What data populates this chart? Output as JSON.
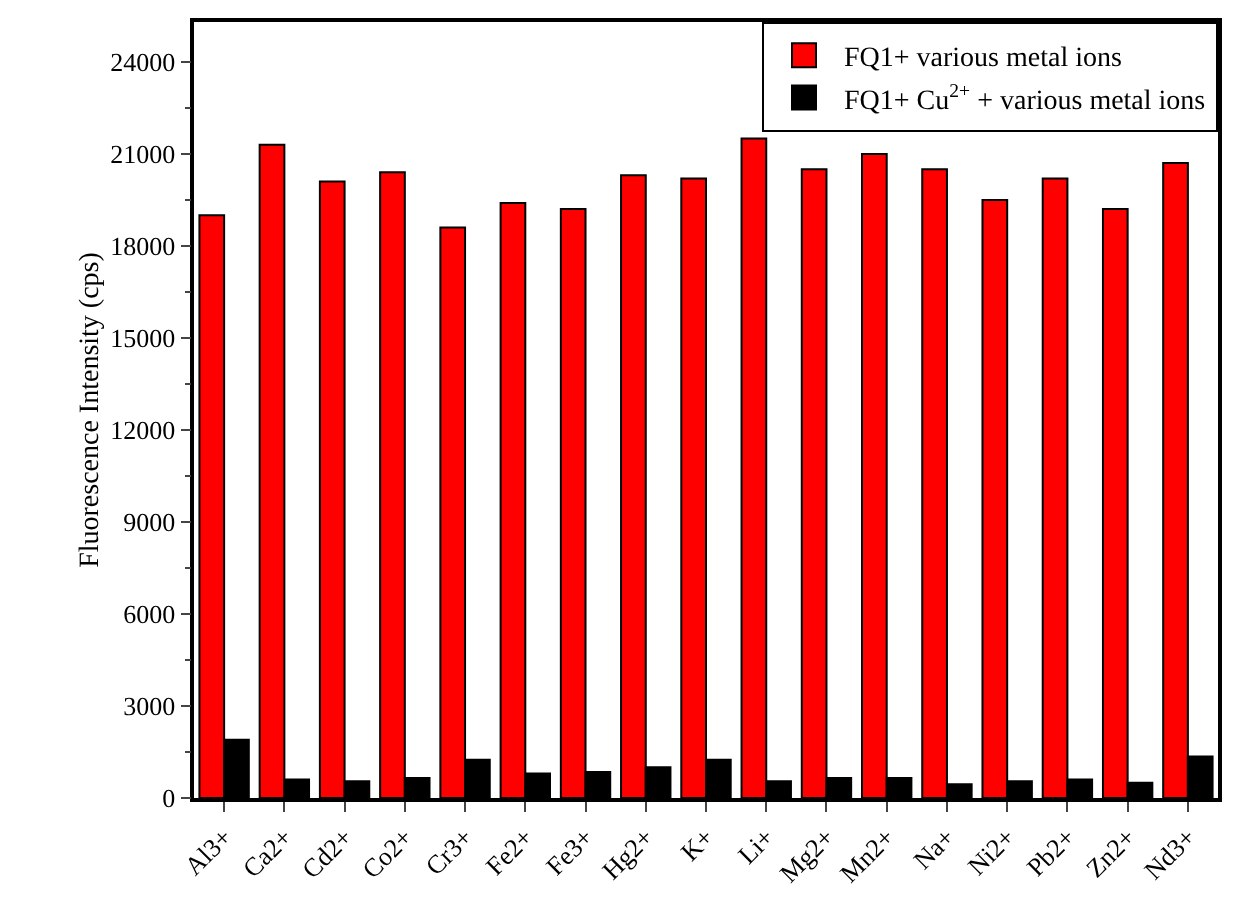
{
  "chart_data": {
    "type": "bar",
    "ylabel": "Fluorescence Intensity (cps)",
    "categories": [
      "Al3+",
      "Ca2+",
      "Cd2+",
      "Co2+",
      "Cr3+",
      "Fe2+",
      "Fe3+",
      "Hg2+",
      "K+",
      "Li+",
      "Mg2+",
      "Mn2+",
      "Na+",
      "Ni2+",
      "Pb2+",
      "Zn2+",
      "Nd3+"
    ],
    "series": [
      {
        "name": "FQ1+ various metal ions",
        "color": "#ff0000",
        "values": [
          19000,
          21300,
          20100,
          20400,
          18600,
          19400,
          19200,
          20300,
          20200,
          21500,
          20500,
          21000,
          20500,
          19500,
          20200,
          19200,
          20700
        ]
      },
      {
        "name": "FQ1+ Cu$^{2+}$ + various metal ions",
        "color": "#000000",
        "values": [
          1900,
          600,
          550,
          650,
          1250,
          800,
          850,
          1000,
          1250,
          550,
          650,
          650,
          450,
          550,
          600,
          500,
          1350
        ]
      }
    ],
    "ylim": [
      0,
      25300
    ],
    "yticks": [
      0,
      3000,
      6000,
      9000,
      12000,
      15000,
      18000,
      21000,
      24000
    ],
    "grid": false,
    "legend": "top right"
  }
}
